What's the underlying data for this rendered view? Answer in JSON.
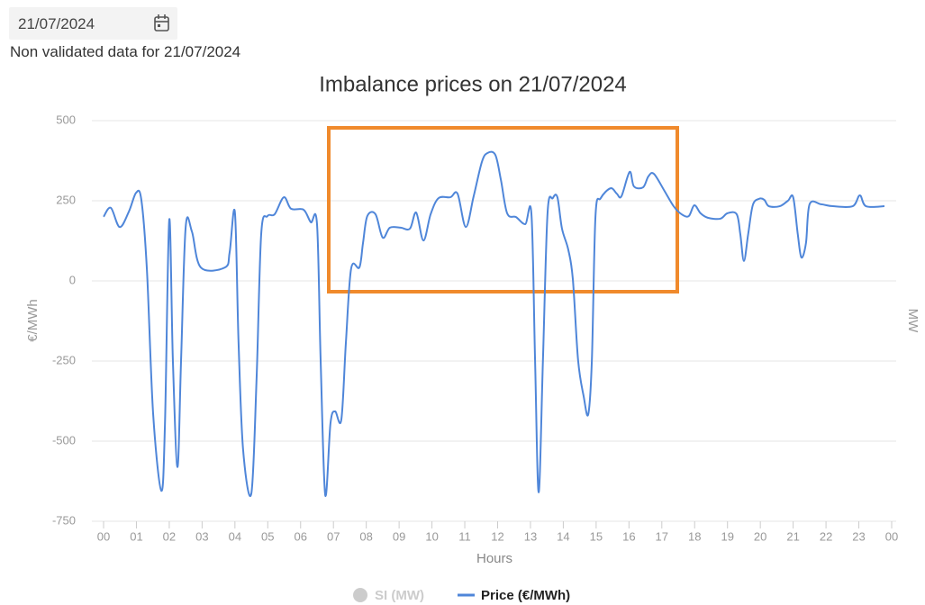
{
  "date_input": "21/07/2024",
  "note": "Non validated data for 21/07/2024",
  "chart_data": {
    "type": "line",
    "title": "Imbalance prices on 21/07/2024",
    "xlabel": "Hours",
    "ylabel": "€/MWh",
    "y2label": "MW",
    "xlim": [
      0,
      24
    ],
    "xticks": [
      {
        "value": 0,
        "label": "00"
      },
      {
        "value": 1,
        "label": "01"
      },
      {
        "value": 2,
        "label": "02"
      },
      {
        "value": 3,
        "label": "03"
      },
      {
        "value": 4,
        "label": "04"
      },
      {
        "value": 5,
        "label": "05"
      },
      {
        "value": 6,
        "label": "06"
      },
      {
        "value": 7,
        "label": "07"
      },
      {
        "value": 8,
        "label": "08"
      },
      {
        "value": 9,
        "label": "09"
      },
      {
        "value": 10,
        "label": "10"
      },
      {
        "value": 11,
        "label": "11"
      },
      {
        "value": 12,
        "label": "12"
      },
      {
        "value": 13,
        "label": "13"
      },
      {
        "value": 14,
        "label": "14"
      },
      {
        "value": 15,
        "label": "15"
      },
      {
        "value": 16,
        "label": "16"
      },
      {
        "value": 17,
        "label": "17"
      },
      {
        "value": 18,
        "label": "18"
      },
      {
        "value": 19,
        "label": "19"
      },
      {
        "value": 20,
        "label": "20"
      },
      {
        "value": 21,
        "label": "21"
      },
      {
        "value": 22,
        "label": "22"
      },
      {
        "value": 23,
        "label": "23"
      },
      {
        "value": 24,
        "label": "00"
      }
    ],
    "ylim": [
      -750,
      500
    ],
    "yticks": [
      -750,
      -500,
      -250,
      0,
      250,
      500
    ],
    "grid": true,
    "hidden_series": [
      {
        "name": "SI (MW)",
        "color": "#cccccc"
      }
    ],
    "x": [
      0,
      0.22,
      0.49,
      0.77,
      0.99,
      1.15,
      1.32,
      1.51,
      1.76,
      1.87,
      2.0,
      2.11,
      2.25,
      2.36,
      2.5,
      2.69,
      2.96,
      3.7,
      3.84,
      4.0,
      4.11,
      4.25,
      4.5,
      4.66,
      4.8,
      4.99,
      5.21,
      5.49,
      5.71,
      6.09,
      6.31,
      6.5,
      6.61,
      6.75,
      6.91,
      7.05,
      7.24,
      7.38,
      7.54,
      7.79,
      7.9,
      8.03,
      8.28,
      8.5,
      8.72,
      9.05,
      9.33,
      9.52,
      9.74,
      9.96,
      10.2,
      10.56,
      10.78,
      11.03,
      11.27,
      11.52,
      11.69,
      11.93,
      12.1,
      12.29,
      12.56,
      12.84,
      13.03,
      13.14,
      13.25,
      13.38,
      13.52,
      13.68,
      13.82,
      13.96,
      14.15,
      14.29,
      14.45,
      14.62,
      14.76,
      14.87,
      14.98,
      15.14,
      15.44,
      15.63,
      15.77,
      16.02,
      16.15,
      16.43,
      16.59,
      16.76,
      17.08,
      17.36,
      17.6,
      17.82,
      17.99,
      18.18,
      18.4,
      18.78,
      19.0,
      19.28,
      19.39,
      19.5,
      19.63,
      19.77,
      19.96,
      20.12,
      20.26,
      20.59,
      20.84,
      21.0,
      21.14,
      21.25,
      21.39,
      21.5,
      21.85,
      22.21,
      22.81,
      23.03,
      23.22,
      23.78
    ],
    "series": [
      {
        "name": "Price (€/MWh)",
        "color": "#4f86d9",
        "values": [
          200,
          228,
          168,
          216,
          275,
          253,
          34,
          -416,
          -655,
          -444,
          191,
          -247,
          -581,
          -247,
          168,
          154,
          42,
          42,
          90,
          213,
          -191,
          -528,
          -663,
          -303,
          146,
          202,
          208,
          261,
          225,
          222,
          183,
          177,
          -247,
          -668,
          -444,
          -407,
          -433,
          -191,
          39,
          42,
          118,
          202,
          208,
          135,
          166,
          166,
          163,
          213,
          126,
          208,
          258,
          261,
          272,
          168,
          264,
          371,
          399,
          393,
          315,
          211,
          199,
          177,
          208,
          -247,
          -660,
          -247,
          211,
          258,
          261,
          163,
          98,
          6,
          -247,
          -360,
          -416,
          -247,
          202,
          258,
          289,
          272,
          264,
          340,
          295,
          292,
          326,
          334,
          281,
          233,
          208,
          202,
          236,
          211,
          197,
          194,
          211,
          208,
          146,
          62,
          146,
          236,
          256,
          253,
          233,
          233,
          250,
          261,
          146,
          73,
          118,
          239,
          239,
          233,
          233,
          267,
          233,
          233
        ]
      }
    ]
  }
}
